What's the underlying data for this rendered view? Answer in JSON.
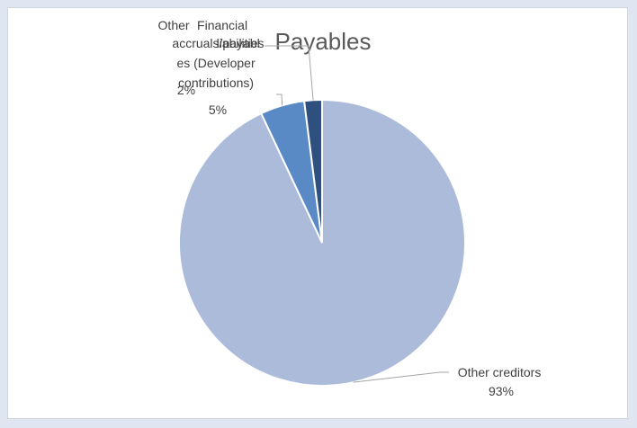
{
  "chart_data": {
    "type": "pie",
    "title": "Payables",
    "slices": [
      {
        "label": "Other creditors",
        "value": 93,
        "percent_label": "93%",
        "color": "#abbbd9"
      },
      {
        "label": "Other accruals/payables (Developer contributions)",
        "value": 5,
        "percent_label": "5%",
        "color": "#5a8ac6"
      },
      {
        "label": "Financial liabilities",
        "value": 2,
        "percent_label": "2%",
        "color": "#2f4f7f"
      }
    ],
    "legend": "none"
  }
}
